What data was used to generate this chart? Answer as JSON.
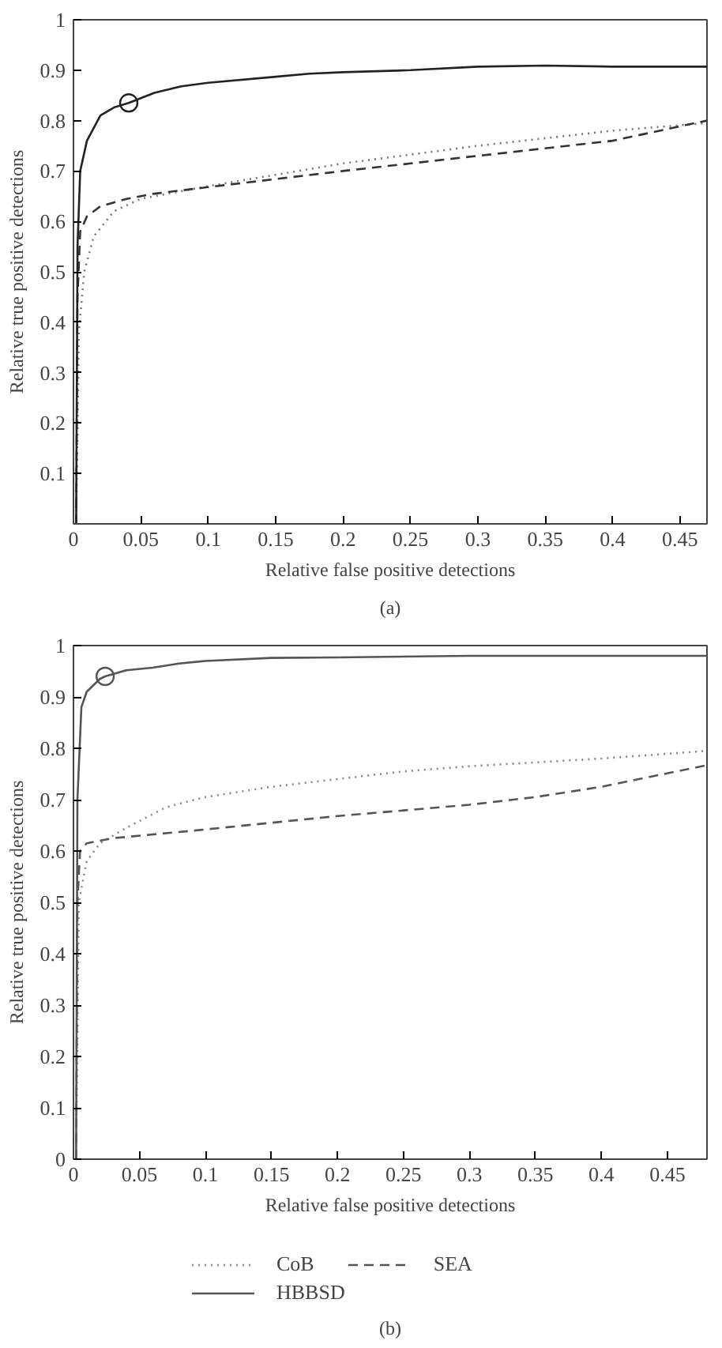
{
  "chart_data": [
    {
      "type": "line",
      "xlabel": "Relative false positive detections",
      "ylabel": "Relative true positive detections",
      "annotations": [
        "(a)"
      ],
      "xlim": [
        0,
        0.47
      ],
      "ylim": [
        0,
        1
      ],
      "xticks": [
        0,
        0.05,
        0.1,
        0.15,
        0.2,
        0.25,
        0.3,
        0.35,
        0.4,
        0.45
      ],
      "yticks": [
        0.1,
        0.2,
        0.3,
        0.4,
        0.5,
        0.6,
        0.7,
        0.8,
        0.9,
        1
      ],
      "grid": false,
      "legend": false,
      "series": [
        {
          "color": "#777777",
          "line_style": "dotted",
          "marker": "none",
          "x": [
            0.002,
            0.004,
            0.008,
            0.015,
            0.03,
            0.05,
            0.1,
            0.2,
            0.3,
            0.4,
            0.47
          ],
          "values": [
            0.0,
            0.38,
            0.5,
            0.57,
            0.62,
            0.645,
            0.67,
            0.715,
            0.75,
            0.78,
            0.795
          ]
        },
        {
          "color": "#333333",
          "line_style": "dashed",
          "marker": "none",
          "x": [
            0.002,
            0.003,
            0.005,
            0.01,
            0.02,
            0.04,
            0.06,
            0.1,
            0.2,
            0.3,
            0.4,
            0.47
          ],
          "values": [
            0.0,
            0.45,
            0.58,
            0.61,
            0.63,
            0.645,
            0.655,
            0.668,
            0.7,
            0.73,
            0.76,
            0.8
          ]
        },
        {
          "color": "#222222",
          "line_style": "solid",
          "marker": "none",
          "x": [
            0.002,
            0.003,
            0.005,
            0.01,
            0.02,
            0.03,
            0.041,
            0.06,
            0.08,
            0.1,
            0.15,
            0.175,
            0.2,
            0.25,
            0.3,
            0.35,
            0.4,
            0.47
          ],
          "values": [
            0.0,
            0.55,
            0.7,
            0.76,
            0.81,
            0.826,
            0.835,
            0.855,
            0.868,
            0.875,
            0.887,
            0.893,
            0.896,
            0.9,
            0.907,
            0.909,
            0.907,
            0.907
          ]
        },
        {
          "type": "scatter",
          "color": "#222222",
          "marker": "circle",
          "x": [
            0.041
          ],
          "values": [
            0.835
          ]
        }
      ]
    },
    {
      "type": "line",
      "xlabel": "Relative false positive detections",
      "ylabel": "Relative true positive detections",
      "annotations": [
        "(b)"
      ],
      "xlim": [
        0,
        0.48
      ],
      "ylim": [
        0,
        1
      ],
      "xticks": [
        0,
        0.05,
        0.1,
        0.15,
        0.2,
        0.25,
        0.3,
        0.35,
        0.4,
        0.45
      ],
      "yticks": [
        0,
        0.1,
        0.2,
        0.3,
        0.4,
        0.5,
        0.6,
        0.7,
        0.8,
        0.9,
        1
      ],
      "grid": false,
      "legend": "bottom",
      "series": [
        {
          "name": "CoB",
          "color": "#888888",
          "line_style": "dotted",
          "marker": "none",
          "x": [
            0.002,
            0.004,
            0.01,
            0.02,
            0.04,
            0.07,
            0.1,
            0.15,
            0.2,
            0.25,
            0.3,
            0.4,
            0.48
          ],
          "values": [
            0.0,
            0.5,
            0.58,
            0.615,
            0.645,
            0.685,
            0.705,
            0.725,
            0.74,
            0.755,
            0.765,
            0.78,
            0.795
          ]
        },
        {
          "name": "SEA",
          "color": "#555555",
          "line_style": "dashed",
          "marker": "none",
          "x": [
            0.002,
            0.003,
            0.005,
            0.01,
            0.03,
            0.08,
            0.1,
            0.2,
            0.3,
            0.35,
            0.4,
            0.48
          ],
          "values": [
            0.0,
            0.5,
            0.6,
            0.615,
            0.625,
            0.637,
            0.642,
            0.668,
            0.69,
            0.705,
            0.725,
            0.767
          ]
        },
        {
          "name": "HBBSD",
          "color": "#555555",
          "line_style": "solid",
          "marker": "none",
          "x": [
            0.002,
            0.003,
            0.006,
            0.01,
            0.02,
            0.024,
            0.04,
            0.06,
            0.08,
            0.1,
            0.15,
            0.2,
            0.3,
            0.48
          ],
          "values": [
            0.0,
            0.7,
            0.88,
            0.91,
            0.935,
            0.94,
            0.952,
            0.957,
            0.965,
            0.97,
            0.976,
            0.977,
            0.98,
            0.98
          ]
        },
        {
          "type": "scatter",
          "color": "#555555",
          "marker": "circle",
          "x": [
            0.024
          ],
          "values": [
            0.94
          ]
        }
      ]
    }
  ]
}
